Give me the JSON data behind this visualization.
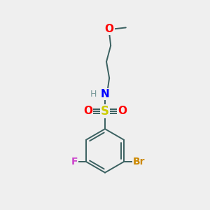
{
  "background_color": "#efefef",
  "atom_colors": {
    "C": "#000000",
    "H": "#7a9a9a",
    "N": "#0000ff",
    "O": "#ff0000",
    "S": "#cccc00",
    "F": "#cc44cc",
    "Br": "#cc8800"
  },
  "bond_color": "#3a6060",
  "bond_width": 1.4,
  "figsize": [
    3.0,
    3.0
  ],
  "dpi": 100
}
